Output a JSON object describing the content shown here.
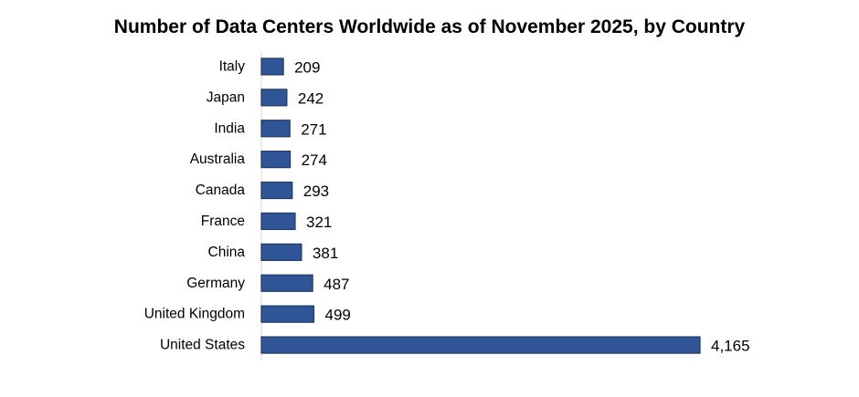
{
  "chart_data": {
    "type": "bar",
    "orientation": "horizontal",
    "title": "Number of Data Centers Worldwide as of November 2025, by Country",
    "xlabel": "",
    "ylabel": "",
    "categories": [
      "Italy",
      "Japan",
      "India",
      "Australia",
      "Canada",
      "France",
      "China",
      "Germany",
      "United Kingdom",
      "United States"
    ],
    "values": [
      209,
      242,
      271,
      274,
      293,
      321,
      381,
      487,
      499,
      4165
    ],
    "data_labels": [
      "209",
      "242",
      "271",
      "274",
      "293",
      "321",
      "381",
      "487",
      "499",
      "4,165"
    ],
    "xlim": [
      0,
      4165
    ],
    "grid": false,
    "legend": "none",
    "colors": {
      "bar_fill": "#2F5597",
      "bar_stroke": "#1F3864",
      "axis": "#D9D9D9"
    }
  }
}
